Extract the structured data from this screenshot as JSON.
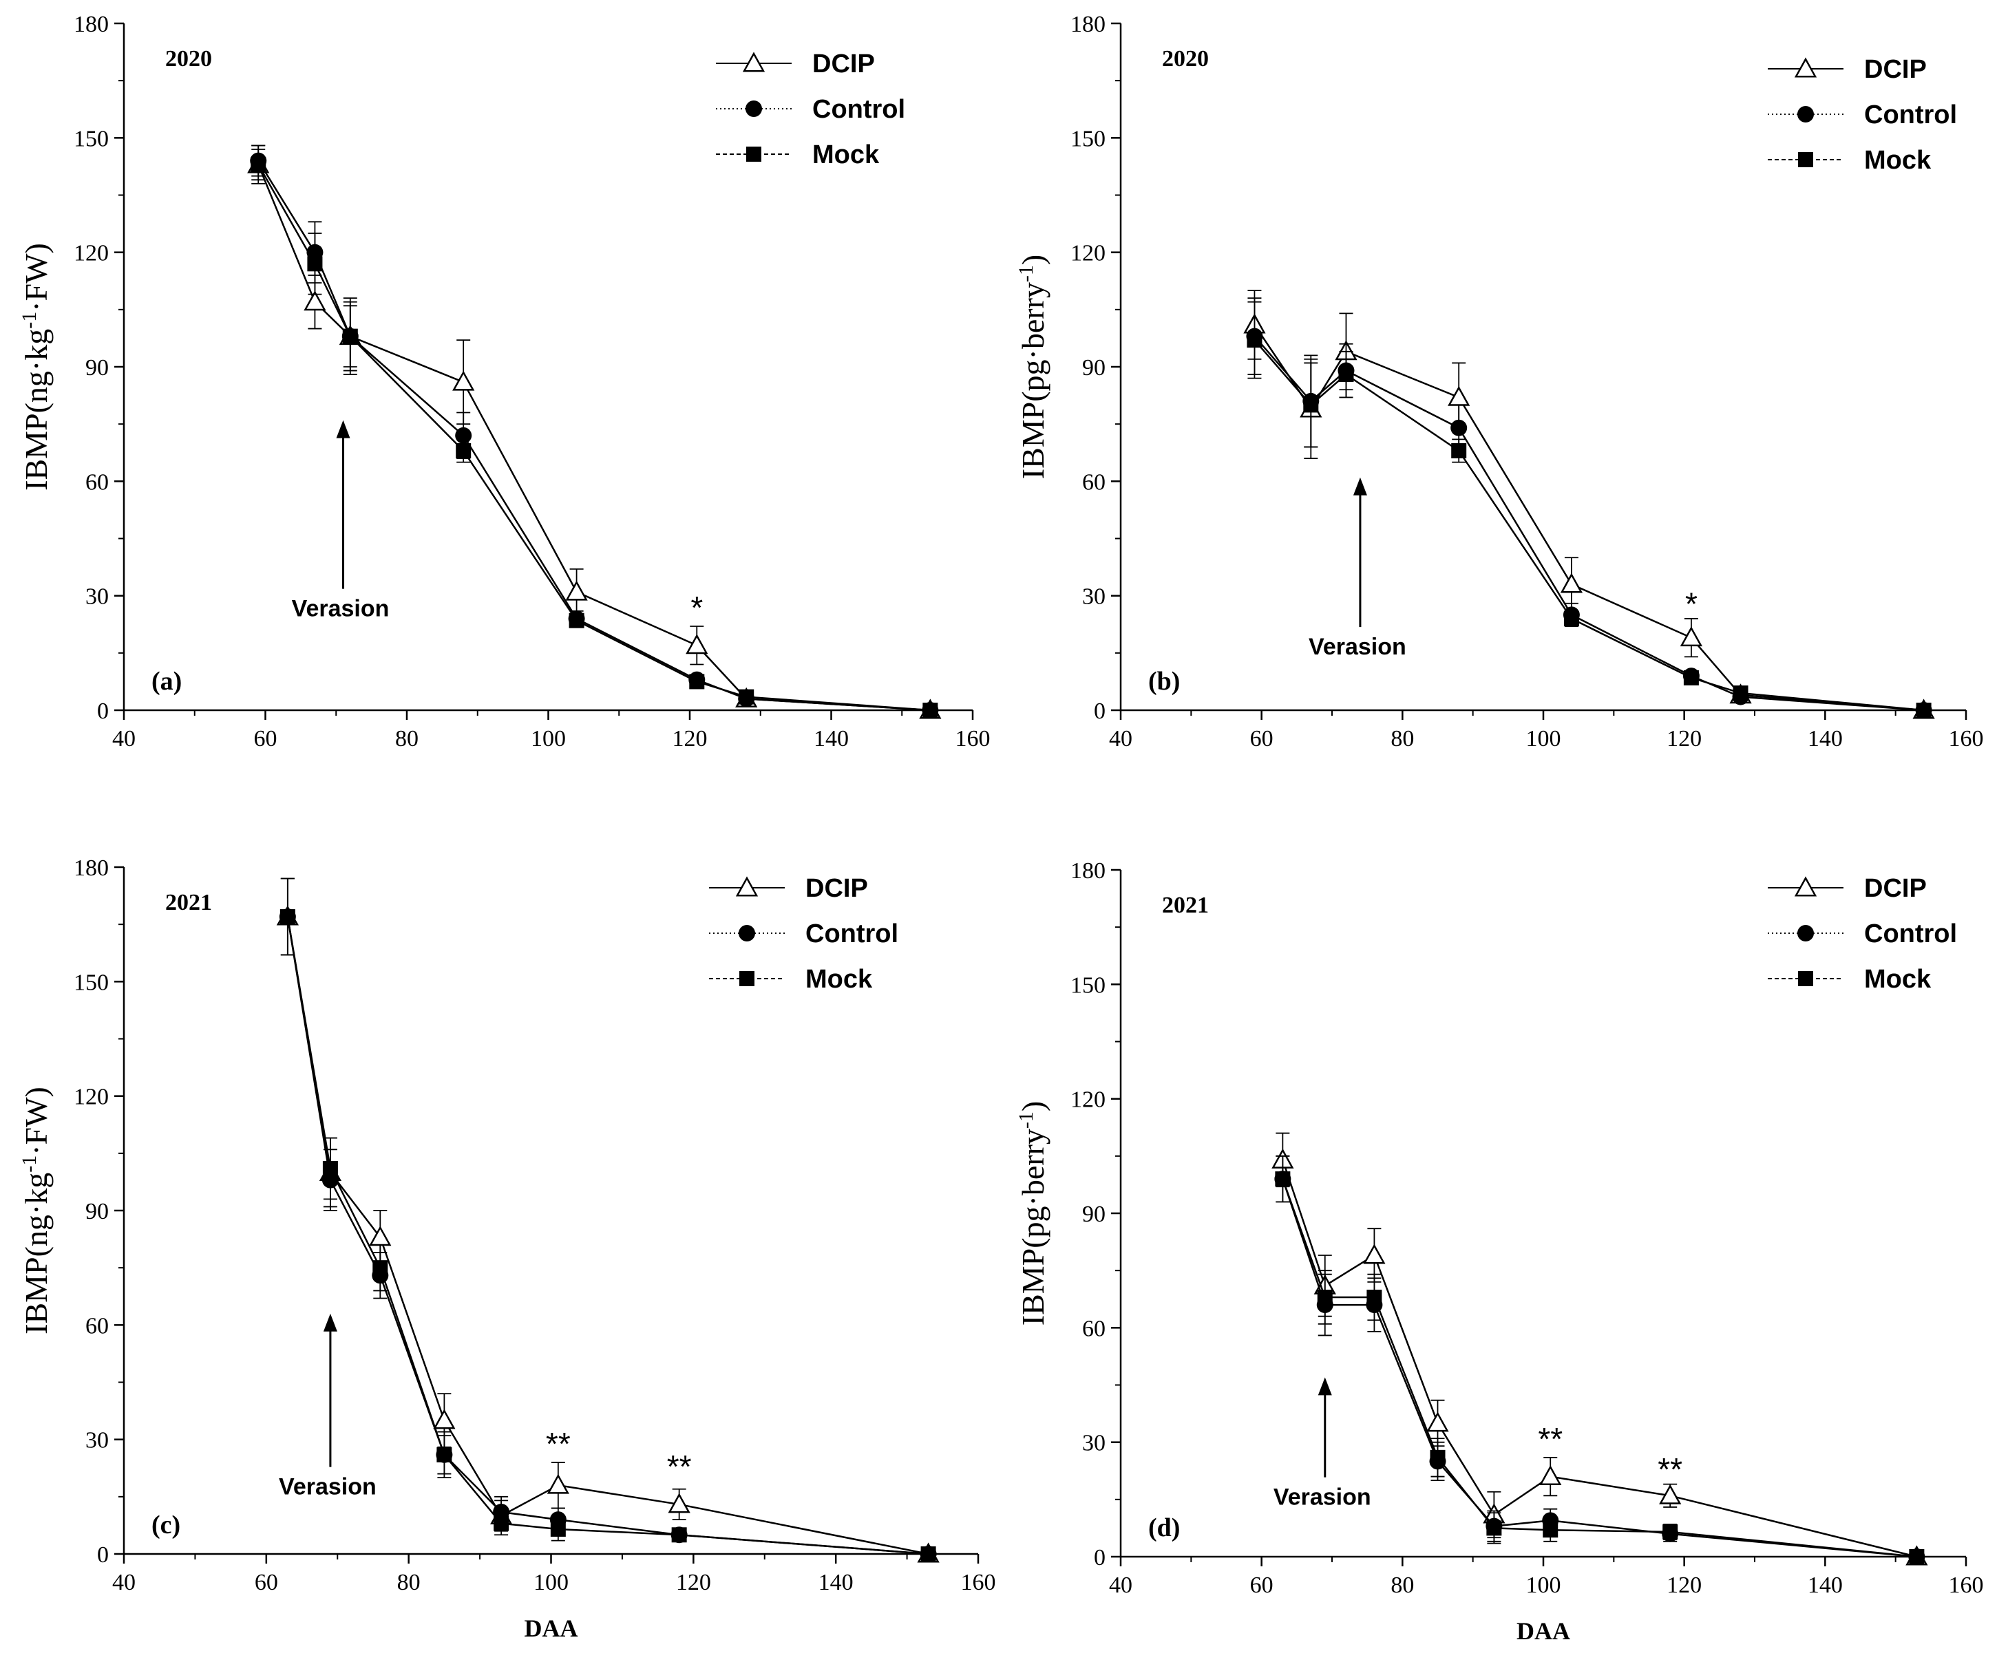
{
  "chart_data": [
    {
      "type": "line",
      "panel_label": "(a)",
      "year_label": "2020",
      "ylabel": "IBMP(ng·kg⁻¹·FW)",
      "xlabel": "",
      "xlim": [
        40,
        160
      ],
      "ylim": [
        0,
        180
      ],
      "xticks": [
        "40",
        "60",
        "80",
        "100",
        "120",
        "140",
        "160"
      ],
      "yticks": [
        "0",
        "30",
        "60",
        "90",
        "120",
        "150",
        "180"
      ],
      "annotation": {
        "text": "Verasion",
        "x": 71,
        "y_tail": 30,
        "y_head": 76
      },
      "significance": [
        {
          "text": "*",
          "x": 121,
          "y": 24
        }
      ],
      "legend": {
        "position": "top-right",
        "entries": [
          "DCIP",
          "Control",
          "Mock"
        ]
      },
      "series": [
        {
          "name": "DCIP",
          "marker": "triangle-open",
          "x": [
            59,
            67,
            72,
            88,
            104,
            121,
            128,
            154
          ],
          "y": [
            143,
            107,
            98,
            86,
            31,
            17,
            3,
            0
          ],
          "err": [
            5,
            7,
            8,
            11,
            6,
            5,
            1,
            0
          ]
        },
        {
          "name": "Control",
          "marker": "circle-filled",
          "x": [
            59,
            67,
            72,
            88,
            104,
            121,
            128,
            154
          ],
          "y": [
            144,
            120,
            98,
            72,
            24,
            8,
            3,
            0
          ],
          "err": [
            4,
            8,
            10,
            6,
            2,
            1,
            1,
            0
          ]
        },
        {
          "name": "Mock",
          "marker": "square-filled",
          "x": [
            59,
            67,
            72,
            88,
            104,
            121,
            128,
            154
          ],
          "y": [
            143,
            117,
            98,
            68,
            23.5,
            7.5,
            3.5,
            0
          ],
          "err": [
            4,
            8,
            9,
            3,
            1,
            1,
            1,
            0
          ]
        }
      ]
    },
    {
      "type": "line",
      "panel_label": "(b)",
      "year_label": "2020",
      "ylabel": "IBMP(pg·berry⁻¹)",
      "xlabel": "",
      "xlim": [
        40,
        160
      ],
      "ylim": [
        0,
        180
      ],
      "xticks": [
        "40",
        "60",
        "80",
        "100",
        "120",
        "140",
        "160"
      ],
      "yticks": [
        "0",
        "30",
        "60",
        "90",
        "120",
        "150",
        "180"
      ],
      "annotation": {
        "text": "Verasion",
        "x": 74,
        "y_tail": 20,
        "y_head": 61
      },
      "significance": [
        {
          "text": "*",
          "x": 121,
          "y": 25
        }
      ],
      "legend": {
        "position": "top-right",
        "entries": [
          "DCIP",
          "Control",
          "Mock"
        ]
      },
      "series": [
        {
          "name": "DCIP",
          "marker": "triangle-open",
          "x": [
            59,
            67,
            72,
            88,
            104,
            121,
            128,
            154
          ],
          "y": [
            101,
            79,
            94,
            82,
            33,
            19,
            4,
            0
          ],
          "err": [
            9,
            13,
            10,
            9,
            7,
            5,
            1,
            0
          ]
        },
        {
          "name": "Control",
          "marker": "circle-filled",
          "x": [
            59,
            67,
            72,
            88,
            104,
            121,
            128,
            154
          ],
          "y": [
            98,
            81,
            89,
            74,
            25,
            9,
            3.5,
            0
          ],
          "err": [
            10,
            12,
            7,
            6,
            3,
            1,
            1,
            0
          ]
        },
        {
          "name": "Mock",
          "marker": "square-filled",
          "x": [
            59,
            67,
            72,
            88,
            104,
            121,
            128,
            154
          ],
          "y": [
            97,
            80,
            88,
            68,
            24,
            8.5,
            4.5,
            0
          ],
          "err": [
            10,
            11,
            6,
            3,
            2,
            1,
            1,
            0
          ]
        }
      ]
    },
    {
      "type": "line",
      "panel_label": "(c)",
      "year_label": "2021",
      "ylabel": "IBMP(ng·kg⁻¹·FW)",
      "xlabel": "DAA",
      "xlim": [
        40,
        160
      ],
      "ylim": [
        0,
        180
      ],
      "xticks": [
        "40",
        "60",
        "80",
        "100",
        "120",
        "140",
        "160"
      ],
      "yticks": [
        "0",
        "30",
        "60",
        "90",
        "120",
        "150",
        "180"
      ],
      "annotation": {
        "text": "Verasion",
        "x": 69,
        "y_tail": 21,
        "y_head": 63
      },
      "significance": [
        {
          "text": "**",
          "x": 101,
          "y": 26
        },
        {
          "text": "**",
          "x": 118,
          "y": 20
        }
      ],
      "legend": {
        "position": "top-right",
        "entries": [
          "DCIP",
          "Control",
          "Mock"
        ]
      },
      "series": [
        {
          "name": "DCIP",
          "marker": "triangle-open",
          "x": [
            63,
            69,
            76,
            85,
            93,
            101,
            118,
            153
          ],
          "y": [
            167,
            100,
            83,
            35,
            10,
            18,
            13,
            0
          ],
          "err": [
            10,
            9,
            7,
            7,
            4,
            6,
            4,
            0
          ]
        },
        {
          "name": "Control",
          "marker": "circle-filled",
          "x": [
            63,
            69,
            76,
            85,
            93,
            101,
            118,
            153
          ],
          "y": [
            167,
            98,
            73,
            26,
            11,
            9,
            5,
            0
          ],
          "err": [
            10,
            8,
            6,
            6,
            4,
            3,
            1,
            0
          ]
        },
        {
          "name": "Mock",
          "marker": "square-filled",
          "x": [
            63,
            69,
            76,
            85,
            93,
            101,
            118,
            153
          ],
          "y": [
            167,
            101,
            75,
            26,
            8,
            6.5,
            5,
            0
          ],
          "err": [
            10,
            8,
            6,
            5,
            3,
            3,
            1,
            0
          ]
        }
      ]
    },
    {
      "type": "line",
      "panel_label": "(d)",
      "year_label": "2021",
      "ylabel": "IBMP(pg·berry⁻¹)",
      "xlabel": "DAA",
      "xlim": [
        40,
        160
      ],
      "ylim": [
        0,
        180
      ],
      "xticks": [
        "40",
        "60",
        "80",
        "100",
        "120",
        "140",
        "160"
      ],
      "yticks": [
        "0",
        "30",
        "60",
        "90",
        "120",
        "150",
        "180"
      ],
      "annotation": {
        "text": "Verasion",
        "x": 69,
        "y_tail": 19,
        "y_head": 47
      },
      "significance": [
        {
          "text": "**",
          "x": 101,
          "y": 28
        },
        {
          "text": "**",
          "x": 118,
          "y": 20
        }
      ],
      "legend": {
        "position": "top-right",
        "entries": [
          "DCIP",
          "Control",
          "Mock"
        ]
      },
      "series": [
        {
          "name": "DCIP",
          "marker": "triangle-open",
          "x": [
            63,
            69,
            76,
            85,
            93,
            101,
            118,
            153
          ],
          "y": [
            104,
            71,
            79,
            35,
            11,
            21,
            16,
            0
          ],
          "err": [
            7,
            8,
            7,
            6,
            6,
            5,
            3,
            0
          ]
        },
        {
          "name": "Control",
          "marker": "circle-filled",
          "x": [
            63,
            69,
            76,
            85,
            93,
            101,
            118,
            153
          ],
          "y": [
            99,
            66,
            66,
            25,
            8,
            9.5,
            6,
            0
          ],
          "err": [
            6,
            8,
            7,
            5,
            4,
            3,
            2,
            0
          ]
        },
        {
          "name": "Mock",
          "marker": "square-filled",
          "x": [
            63,
            69,
            76,
            85,
            93,
            101,
            118,
            153
          ],
          "y": [
            99,
            68,
            68,
            26,
            7.5,
            7,
            6.5,
            0
          ],
          "err": [
            6,
            7,
            6,
            5,
            4,
            3,
            2,
            0
          ]
        }
      ]
    }
  ]
}
